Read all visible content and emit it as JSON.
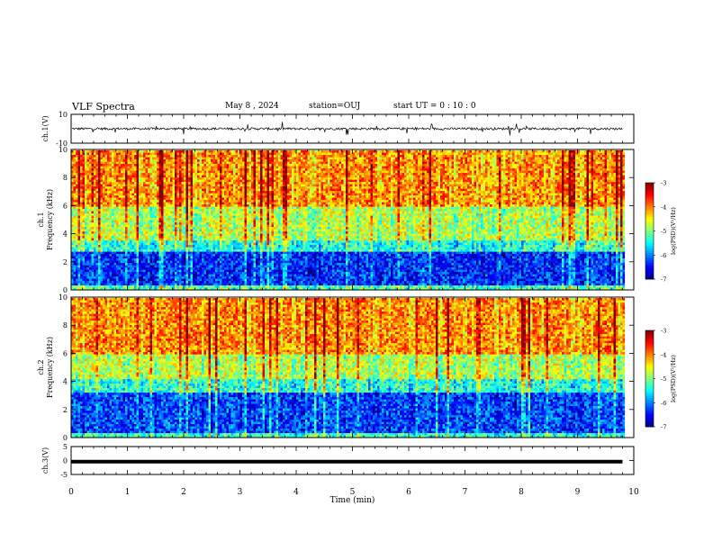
{
  "header": {
    "title": "VLF Spectra",
    "date": "May 8  , 2024",
    "station": "station=OUJ",
    "start": "start  UT  =   0  : 10 : 0"
  },
  "chart_data": [
    {
      "type": "line",
      "panel": "ch1-waveform",
      "ylabel": "ch.1(V)",
      "ylim": [
        -10,
        10
      ],
      "yticks": [
        "10",
        "-10"
      ],
      "xlim": [
        0,
        10
      ],
      "data_end_min": 9.8,
      "baseline": 0,
      "description_of_values": "noisy waveform centered near 0 V, mostly within ±1 V with spikes to about ±5 V"
    },
    {
      "type": "heatmap",
      "panel": "ch1-spectrogram",
      "ylabel": "ch.1\nFrequency (kHz)",
      "ylim": [
        0,
        10
      ],
      "yticks": [
        "0",
        "2",
        "4",
        "6",
        "8",
        "10"
      ],
      "xlim": [
        0,
        10
      ],
      "data_end_min": 9.8,
      "colorbar": {
        "label": "log(PSD)(V²/Hz)",
        "range": [
          -7,
          -3
        ],
        "ticks": [
          "-3",
          "-4",
          "-5",
          "-6",
          "-7"
        ]
      },
      "bands": [
        {
          "f_low": 0,
          "f_high": 0.4,
          "level": -5.2
        },
        {
          "f_low": 0.4,
          "f_high": 2.8,
          "level": -6.3
        },
        {
          "f_low": 2.8,
          "f_high": 3.6,
          "level": -5.3
        },
        {
          "f_low": 3.6,
          "f_high": 6.0,
          "level": -4.7
        },
        {
          "f_low": 6.0,
          "f_high": 10.0,
          "level": -4.0
        }
      ]
    },
    {
      "type": "heatmap",
      "panel": "ch2-spectrogram",
      "ylabel": "ch.2\nFrequency (kHz)",
      "ylim": [
        0,
        10
      ],
      "yticks": [
        "0",
        "2",
        "4",
        "6",
        "8",
        "10"
      ],
      "xlim": [
        0,
        10
      ],
      "data_end_min": 9.8,
      "colorbar": {
        "label": "log(PSD)(V²/Hz)",
        "range": [
          -7,
          -3
        ],
        "ticks": [
          "-3",
          "-4",
          "-5",
          "-6",
          "-7"
        ]
      },
      "bands": [
        {
          "f_low": 0,
          "f_high": 0.4,
          "level": -5.3
        },
        {
          "f_low": 0.4,
          "f_high": 3.2,
          "level": -6.2
        },
        {
          "f_low": 3.2,
          "f_high": 4.2,
          "level": -5.3
        },
        {
          "f_low": 4.2,
          "f_high": 6.0,
          "level": -4.7
        },
        {
          "f_low": 6.0,
          "f_high": 10.0,
          "level": -4.0
        }
      ]
    },
    {
      "type": "line",
      "panel": "ch3-waveform",
      "ylabel": "ch.3(V)",
      "ylim": [
        -5,
        5
      ],
      "yticks": [
        "5",
        "0",
        "-5"
      ],
      "xlim": [
        0,
        10
      ],
      "data_end_min": 9.8,
      "baseline": -0.4
    }
  ],
  "xaxis": {
    "label": "Time  (min)",
    "ticks": [
      "0",
      "1",
      "2",
      "3",
      "4",
      "5",
      "6",
      "7",
      "8",
      "9",
      "10"
    ]
  }
}
